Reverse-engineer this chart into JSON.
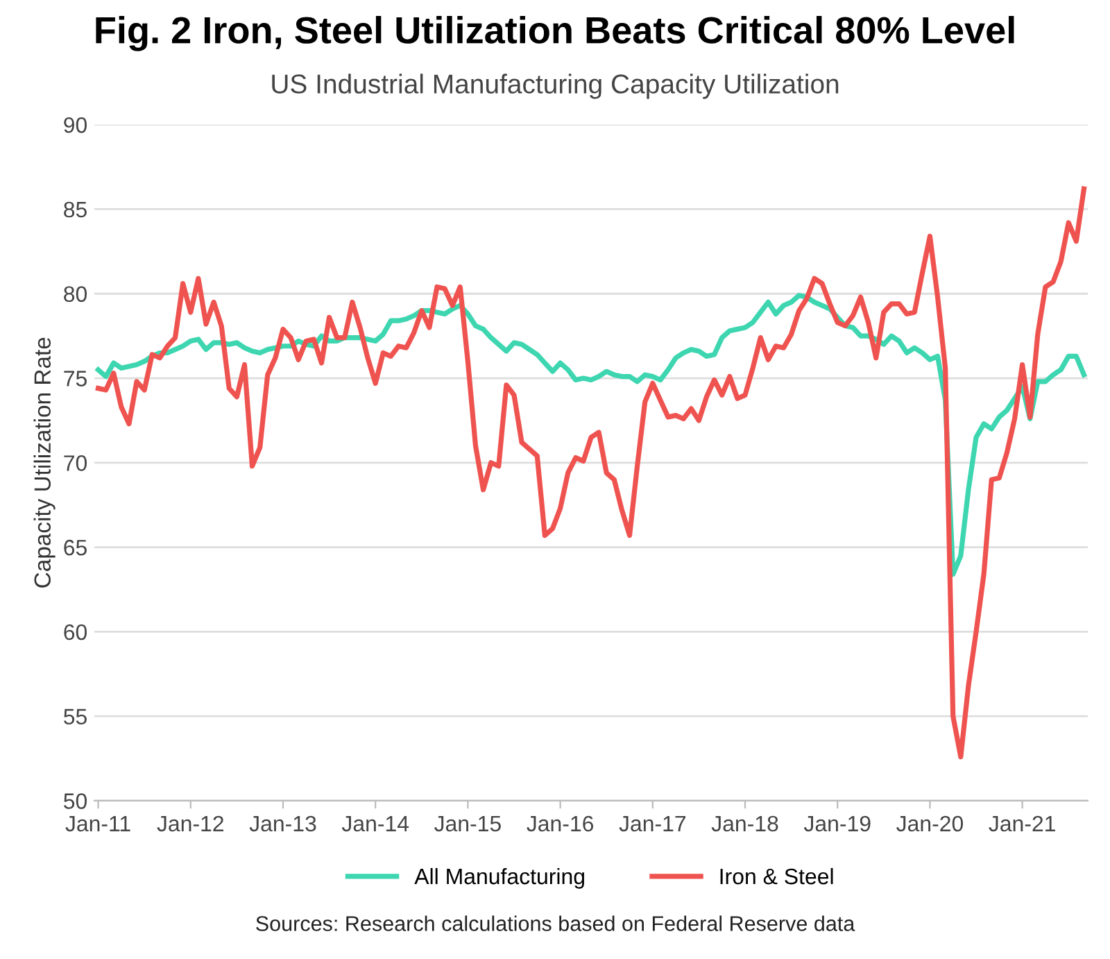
{
  "chart_data": {
    "type": "line",
    "title": "Fig. 2 Iron, Steel Utilization Beats Critical 80% Level",
    "subtitle": "US Industrial Manufacturing Capacity Utilization",
    "ylabel": "Capacity Utilization Rate",
    "categories": [
      "Jan-11",
      null,
      null,
      null,
      null,
      null,
      null,
      null,
      null,
      null,
      null,
      null,
      "Jan-12",
      null,
      null,
      null,
      null,
      null,
      null,
      null,
      null,
      null,
      null,
      null,
      "Jan-13",
      null,
      null,
      null,
      null,
      null,
      null,
      null,
      null,
      null,
      null,
      null,
      "Jan-14",
      null,
      null,
      null,
      null,
      null,
      null,
      null,
      null,
      null,
      null,
      null,
      "Jan-15",
      null,
      null,
      null,
      null,
      null,
      null,
      null,
      null,
      null,
      null,
      null,
      "Jan-16",
      null,
      null,
      null,
      null,
      null,
      null,
      null,
      null,
      null,
      null,
      null,
      "Jan-17",
      null,
      null,
      null,
      null,
      null,
      null,
      null,
      null,
      null,
      null,
      null,
      "Jan-18",
      null,
      null,
      null,
      null,
      null,
      null,
      null,
      null,
      null,
      null,
      null,
      "Jan-19",
      null,
      null,
      null,
      null,
      null,
      null,
      null,
      null,
      null,
      null,
      null,
      "Jan-20",
      null,
      null,
      null,
      null,
      null,
      null,
      null,
      null,
      null,
      null,
      null,
      "Jan-21",
      null,
      null,
      null,
      null,
      null,
      null,
      null,
      null
    ],
    "series": [
      {
        "name": "All Manufacturing",
        "color": "#3dd6b0",
        "values": [
          75.5,
          75.1,
          75.9,
          75.6,
          75.7,
          75.8,
          76.0,
          76.3,
          76.5,
          76.5,
          76.7,
          76.9,
          77.2,
          77.3,
          76.7,
          77.1,
          77.1,
          77.0,
          77.1,
          76.8,
          76.6,
          76.5,
          76.7,
          76.8,
          76.9,
          76.9,
          77.2,
          77.0,
          76.9,
          77.5,
          77.2,
          77.2,
          77.4,
          77.4,
          77.4,
          77.3,
          77.2,
          77.6,
          78.4,
          78.4,
          78.5,
          78.7,
          79.0,
          79.0,
          78.9,
          78.8,
          79.1,
          79.3,
          78.8,
          78.1,
          77.9,
          77.4,
          77.0,
          76.6,
          77.1,
          77.0,
          76.7,
          76.4,
          75.9,
          75.4,
          75.9,
          75.5,
          74.9,
          75.0,
          74.9,
          75.1,
          75.4,
          75.2,
          75.1,
          75.1,
          74.8,
          75.2,
          75.1,
          74.9,
          75.5,
          76.2,
          76.5,
          76.7,
          76.6,
          76.3,
          76.4,
          77.4,
          77.8,
          77.9,
          78.0,
          78.3,
          78.9,
          79.5,
          78.8,
          79.3,
          79.5,
          79.9,
          79.8,
          79.5,
          79.3,
          79.1,
          78.6,
          78.1,
          78.0,
          77.5,
          77.5,
          77.3,
          77.0,
          77.5,
          77.2,
          76.5,
          76.8,
          76.5,
          76.1,
          76.3,
          73.7,
          63.4,
          64.5,
          68.4,
          71.5,
          72.3,
          72.0,
          72.7,
          73.1,
          73.8,
          74.5,
          72.6,
          74.8,
          74.8,
          75.2,
          75.5,
          76.3,
          76.3,
          75.2
        ]
      },
      {
        "name": "Iron & Steel",
        "color": "#ef5350",
        "values": [
          74.4,
          74.3,
          75.3,
          73.3,
          72.3,
          74.8,
          74.3,
          76.4,
          76.2,
          76.9,
          77.4,
          80.6,
          78.9,
          80.9,
          78.2,
          79.5,
          78.1,
          74.4,
          73.9,
          75.8,
          69.8,
          70.9,
          75.2,
          76.2,
          77.9,
          77.4,
          76.1,
          77.2,
          77.3,
          75.9,
          78.6,
          77.4,
          77.4,
          79.5,
          78.0,
          76.2,
          74.7,
          76.5,
          76.3,
          76.9,
          76.8,
          77.7,
          79.0,
          78.0,
          80.4,
          80.3,
          79.3,
          80.4,
          76.0,
          71.0,
          68.4,
          70.0,
          69.8,
          74.6,
          74.0,
          71.2,
          70.8,
          70.4,
          65.7,
          66.1,
          67.3,
          69.4,
          70.3,
          70.1,
          71.5,
          71.8,
          69.4,
          69.0,
          67.2,
          65.7,
          69.8,
          73.6,
          74.7,
          73.7,
          72.7,
          72.8,
          72.6,
          73.2,
          72.5,
          73.9,
          74.9,
          74.0,
          75.1,
          73.8,
          74.0,
          75.6,
          77.4,
          76.1,
          76.9,
          76.8,
          77.6,
          79.0,
          79.7,
          80.9,
          80.6,
          79.4,
          78.3,
          78.1,
          78.7,
          79.8,
          78.3,
          76.2,
          78.9,
          79.4,
          79.4,
          78.8,
          78.9,
          81.2,
          83.4,
          79.8,
          75.6,
          55.0,
          52.6,
          56.8,
          60.0,
          63.4,
          69.0,
          69.1,
          70.6,
          72.6,
          75.8,
          72.7,
          77.6,
          80.4,
          80.7,
          81.9,
          84.2,
          83.1,
          86.2
        ]
      }
    ],
    "ylim": [
      50,
      90
    ],
    "yticks": [
      50,
      55,
      60,
      65,
      70,
      75,
      80,
      85,
      90
    ],
    "grid": "y",
    "legend": "bottom",
    "line_style": "solid",
    "marker": "none",
    "annotations": [
      "Sources: Research calculations based on Federal Reserve data"
    ]
  }
}
